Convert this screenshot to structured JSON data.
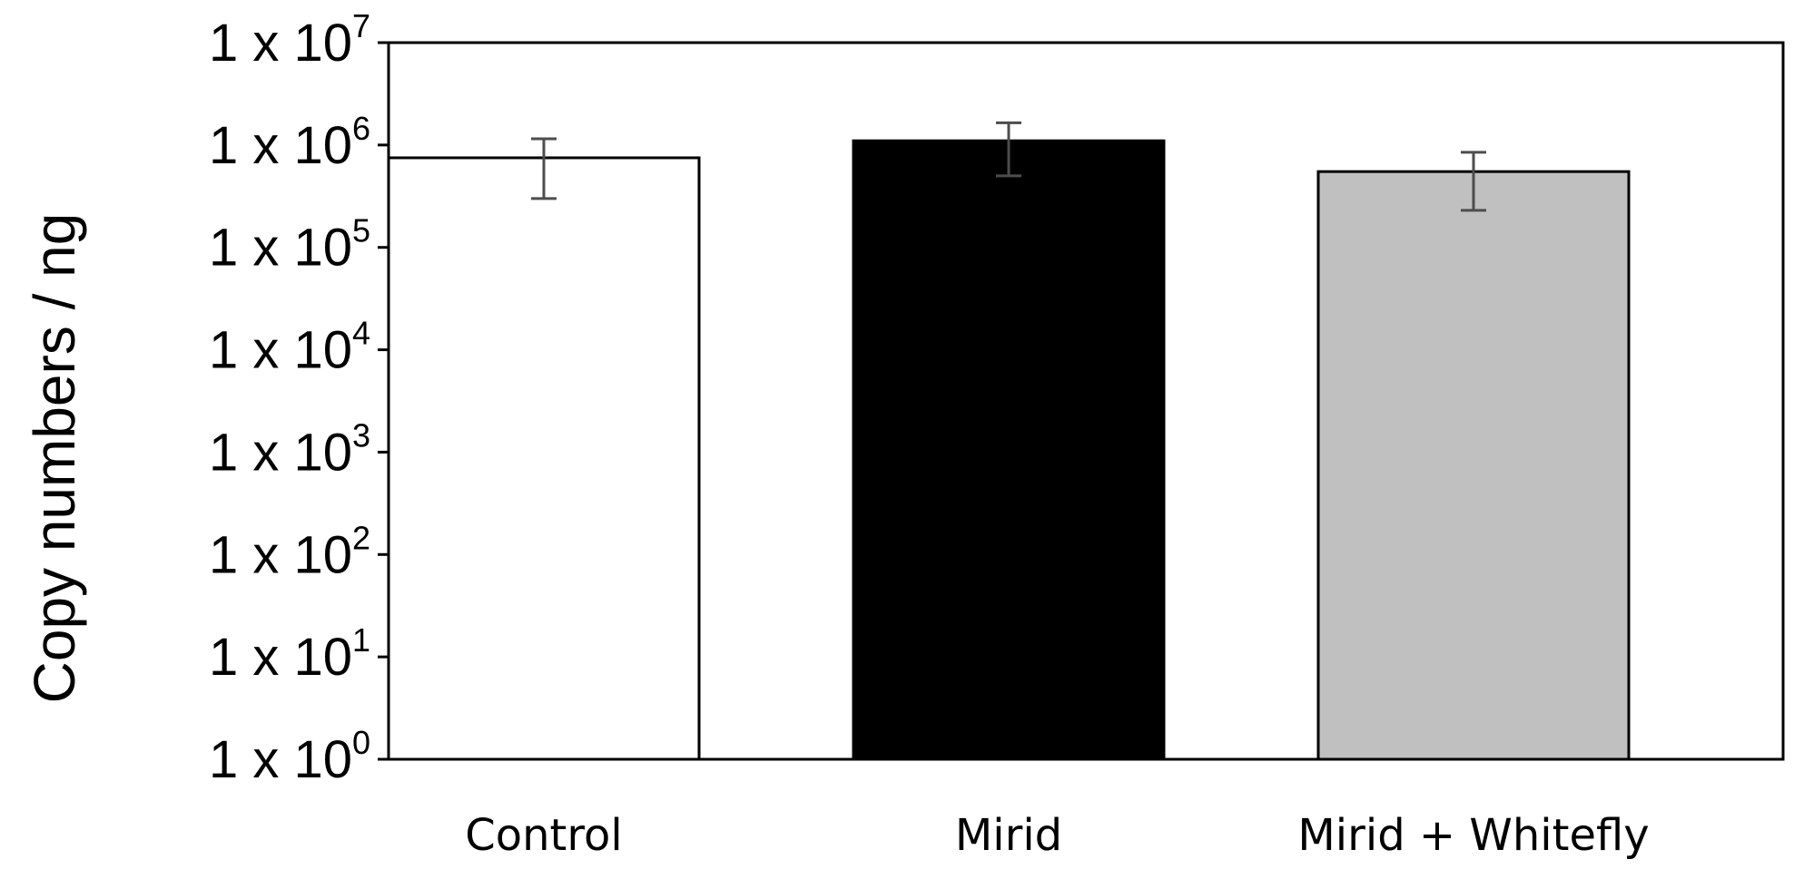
{
  "chart_data": {
    "type": "bar",
    "title": "",
    "xlabel": "",
    "ylabel": "Copy numbers / ng",
    "y_scale": "log",
    "ylim": [
      1,
      10000000
    ],
    "y_ticks": [
      {
        "value": 1,
        "base": "1 x 10",
        "exp": "0"
      },
      {
        "value": 10,
        "base": "1 x 10",
        "exp": "1"
      },
      {
        "value": 100,
        "base": "1 x 10",
        "exp": "2"
      },
      {
        "value": 1000,
        "base": "1 x 10",
        "exp": "3"
      },
      {
        "value": 10000,
        "base": "1 x 10",
        "exp": "4"
      },
      {
        "value": 100000,
        "base": "1 x 10",
        "exp": "5"
      },
      {
        "value": 1000000,
        "base": "1 x 10",
        "exp": "6"
      },
      {
        "value": 10000000,
        "base": "1 x 10",
        "exp": "7"
      }
    ],
    "categories": [
      "Control",
      "Mirid",
      "Mirid + Whitefly"
    ],
    "values": [
      750000,
      1100000,
      550000
    ],
    "error_low": [
      300000,
      500000,
      230000
    ],
    "error_high": [
      1150000,
      1650000,
      850000
    ],
    "bar_colors": [
      "#ffffff",
      "#000000",
      "#c0c0c0"
    ],
    "bar_stroke": "#000000",
    "error_color": "#4d4d4d",
    "grid": false,
    "legend": "none"
  }
}
